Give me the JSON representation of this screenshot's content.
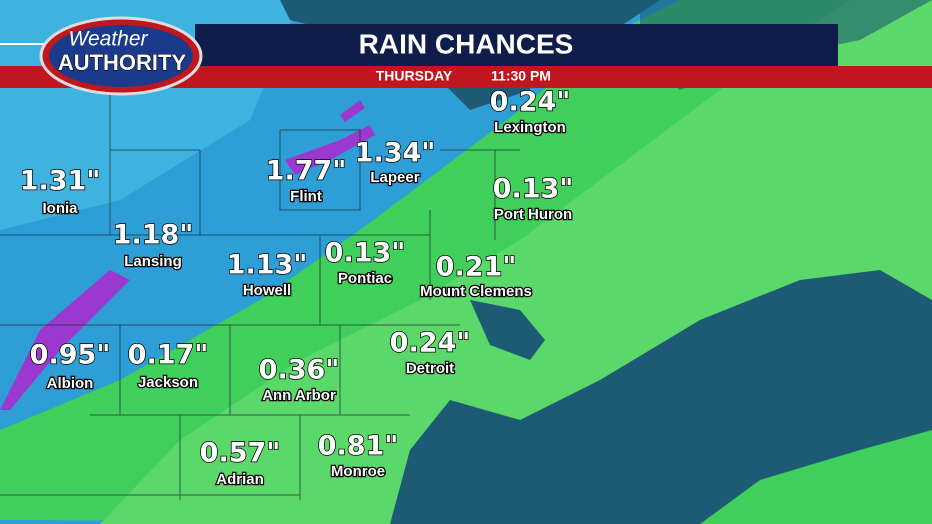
{
  "logo": {
    "line1": "Weather",
    "line2": "AUTHORITY"
  },
  "header": {
    "title": "RAIN CHANCES",
    "day": "THURSDAY",
    "time": "11:30 PM"
  },
  "cities": [
    {
      "name": "Lexington",
      "value": "0.24\""
    },
    {
      "name": "Flint",
      "value": "1.77\""
    },
    {
      "name": "Lapeer",
      "value": "1.34\""
    },
    {
      "name": "Ionia",
      "value": "1.31\""
    },
    {
      "name": "Port Huron",
      "value": "0.13\""
    },
    {
      "name": "Lansing",
      "value": "1.18\""
    },
    {
      "name": "Howell",
      "value": "1.13\""
    },
    {
      "name": "Pontiac",
      "value": "0.13\""
    },
    {
      "name": "Mount Clemens",
      "value": "0.21\""
    },
    {
      "name": "Albion",
      "value": "0.95\""
    },
    {
      "name": "Jackson",
      "value": "0.17\""
    },
    {
      "name": "Detroit",
      "value": "0.24\""
    },
    {
      "name": "Ann Arbor",
      "value": "0.36\""
    },
    {
      "name": "Adrian",
      "value": "0.57\""
    },
    {
      "name": "Monroe",
      "value": "0.81\""
    }
  ]
}
